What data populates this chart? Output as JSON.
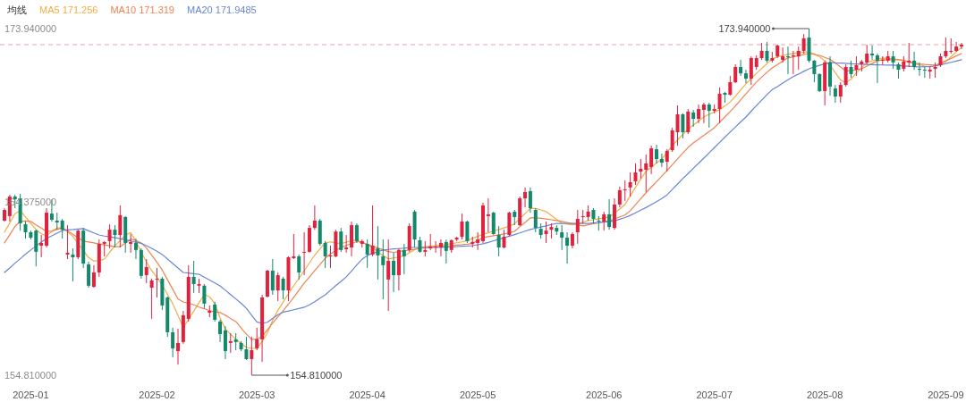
{
  "chart_data": {
    "type": "candlestick",
    "legend_title": "均线",
    "legend": "top left",
    "ylim": [
      154.81,
      173.94
    ],
    "categories": [
      null,
      null,
      null,
      null,
      null,
      "2025-01",
      null,
      null,
      null,
      null,
      null,
      null,
      null,
      null,
      null,
      null,
      null,
      null,
      null,
      null,
      null,
      null,
      null,
      null,
      null,
      null,
      null,
      null,
      null,
      "2025-02",
      null,
      null,
      null,
      null,
      null,
      null,
      null,
      null,
      null,
      null,
      null,
      null,
      null,
      null,
      null,
      null,
      null,
      null,
      "2025-03",
      null,
      null,
      null,
      null,
      null,
      null,
      null,
      null,
      null,
      null,
      null,
      null,
      null,
      null,
      null,
      null,
      null,
      null,
      null,
      null,
      "2025-04",
      null,
      null,
      null,
      null,
      null,
      null,
      null,
      null,
      null,
      null,
      null,
      null,
      null,
      null,
      null,
      null,
      null,
      null,
      null,
      null,
      "2025-05",
      null,
      null,
      null,
      null,
      null,
      null,
      null,
      null,
      null,
      null,
      null,
      null,
      null,
      null,
      null,
      null,
      null,
      null,
      null,
      null,
      null,
      null,
      null,
      "2025-06",
      null,
      null,
      null,
      null,
      null,
      null,
      null,
      null,
      null,
      null,
      null,
      null,
      null,
      null,
      null,
      null,
      null,
      null,
      null,
      null,
      "2025-07",
      null,
      null,
      null,
      null,
      null,
      null,
      null,
      null,
      null,
      null,
      null,
      null,
      null,
      null,
      null,
      null,
      null,
      null,
      null,
      null,
      "2025-08",
      null,
      null,
      null,
      null,
      null,
      null,
      null,
      null,
      null,
      null,
      null,
      null,
      null,
      null,
      null,
      null,
      null,
      null,
      null,
      null,
      null,
      null,
      "2025-09",
      null,
      null,
      null
    ],
    "yticks": [
      {
        "value": 173.94,
        "label": "173.940000"
      },
      {
        "value": 164.375,
        "label": "164.375000"
      },
      {
        "value": 154.81,
        "label": "154.810000"
      }
    ],
    "ohlc": [
      [
        163.34,
        164.03,
        163.29,
        163.93
      ],
      [
        163.59,
        164.77,
        163.29,
        164.67
      ],
      [
        164.67,
        164.77,
        164.03,
        164.52
      ],
      [
        164.57,
        164.82,
        162.79,
        163.19
      ],
      [
        163.14,
        163.29,
        162.35,
        162.7
      ],
      [
        162.7,
        162.79,
        162.3,
        162.4
      ],
      [
        162.79,
        162.84,
        160.82,
        161.62
      ],
      [
        161.96,
        162.55,
        161.32,
        162.11
      ],
      [
        161.96,
        164.03,
        161.86,
        163.78
      ],
      [
        163.73,
        164.52,
        163.29,
        163.39
      ],
      [
        163.34,
        163.78,
        162.84,
        163.24
      ],
      [
        163.34,
        163.44,
        162.35,
        162.84
      ],
      [
        161.47,
        163.09,
        161.22,
        161.57
      ],
      [
        161.47,
        161.81,
        159.99,
        161.32
      ],
      [
        161.32,
        162.84,
        161.22,
        162.79
      ],
      [
        162.79,
        162.94,
        160.73,
        160.97
      ],
      [
        160.92,
        161.07,
        159.64,
        159.75
      ],
      [
        159.69,
        160.88,
        159.64,
        160.48
      ],
      [
        160.48,
        162.3,
        160.24,
        162.06
      ],
      [
        162.06,
        162.21,
        161.37,
        162.16
      ],
      [
        162.21,
        163.14,
        161.81,
        162.84
      ],
      [
        162.84,
        163.09,
        161.86,
        162.55
      ],
      [
        162.55,
        164.18,
        161.86,
        163.64
      ],
      [
        163.54,
        163.59,
        161.57,
        162.11
      ],
      [
        162.06,
        162.6,
        161.57,
        162.16
      ],
      [
        162.11,
        162.35,
        161.22,
        161.72
      ],
      [
        161.72,
        161.81,
        160.14,
        160.29
      ],
      [
        160.33,
        161.22,
        159.89,
        160.78
      ],
      [
        159.64,
        160.14,
        157.92,
        160.04
      ],
      [
        160.09,
        160.73,
        159.1,
        160.14
      ],
      [
        160.14,
        160.24,
        158.41,
        158.66
      ],
      [
        159.1,
        159.15,
        156.93,
        157.18
      ],
      [
        157.18,
        157.43,
        155.8,
        156.29
      ],
      [
        156.14,
        157.37,
        155.4,
        156.59
      ],
      [
        156.64,
        158.36,
        156.54,
        158.12
      ],
      [
        157.92,
        160.88,
        157.77,
        160.24
      ],
      [
        160.24,
        161.12,
        159.35,
        159.84
      ],
      [
        159.75,
        160.14,
        159.35,
        159.84
      ],
      [
        159.75,
        159.84,
        158.51,
        158.76
      ],
      [
        158.26,
        158.66,
        158.01,
        158.36
      ],
      [
        158.71,
        158.86,
        157.77,
        157.87
      ],
      [
        157.77,
        157.87,
        156.64,
        157.08
      ],
      [
        157.28,
        157.52,
        155.7,
        156.14
      ],
      [
        156.59,
        157.13,
        156.04,
        156.69
      ],
      [
        156.79,
        157.13,
        156.19,
        156.64
      ],
      [
        156.59,
        156.69,
        156.14,
        156.24
      ],
      [
        156.24,
        156.93,
        155.65,
        155.7
      ],
      [
        155.7,
        156.93,
        154.81,
        156.19
      ],
      [
        156.29,
        157.43,
        156.19,
        156.79
      ],
      [
        156.79,
        159.25,
        155.55,
        159.1
      ],
      [
        159.15,
        160.63,
        159.1,
        160.58
      ],
      [
        160.58,
        161.22,
        159.25,
        159.49
      ],
      [
        159.49,
        160.48,
        158.9,
        160.33
      ],
      [
        160.14,
        160.24,
        159.0,
        159.49
      ],
      [
        159.49,
        161.37,
        158.9,
        161.32
      ],
      [
        161.27,
        162.6,
        161.22,
        161.37
      ],
      [
        161.37,
        161.47,
        160.09,
        160.48
      ],
      [
        161.57,
        162.7,
        160.33,
        161.62
      ],
      [
        161.62,
        163.09,
        161.57,
        162.94
      ],
      [
        162.94,
        164.18,
        162.84,
        163.34
      ],
      [
        163.34,
        163.44,
        161.96,
        162.06
      ],
      [
        162.11,
        162.21,
        160.73,
        161.37
      ],
      [
        161.37,
        161.96,
        160.73,
        161.42
      ],
      [
        161.37,
        162.84,
        161.32,
        162.74
      ],
      [
        162.74,
        162.94,
        161.62,
        161.72
      ],
      [
        161.76,
        162.55,
        161.57,
        161.86
      ],
      [
        161.86,
        163.29,
        161.37,
        163.09
      ],
      [
        163.09,
        163.19,
        162.11,
        162.21
      ],
      [
        162.06,
        162.3,
        161.86,
        162.21
      ],
      [
        162.06,
        162.3,
        160.73,
        161.47
      ],
      [
        161.47,
        164.18,
        161.37,
        161.96
      ],
      [
        161.81,
        163.04,
        160.09,
        161.42
      ],
      [
        161.37,
        162.3,
        159.0,
        160.88
      ],
      [
        160.09,
        162.3,
        158.36,
        161.12
      ],
      [
        161.12,
        161.57,
        159.4,
        160.33
      ],
      [
        160.33,
        161.81,
        159.49,
        161.72
      ],
      [
        161.72,
        162.06,
        160.38,
        161.37
      ],
      [
        161.72,
        163.19,
        161.62,
        163.04
      ],
      [
        163.84,
        163.93,
        161.86,
        162.3
      ],
      [
        162.26,
        162.45,
        161.57,
        161.62
      ],
      [
        161.62,
        162.21,
        161.37,
        161.72
      ],
      [
        161.81,
        162.6,
        161.72,
        161.91
      ],
      [
        161.86,
        162.21,
        161.57,
        161.91
      ],
      [
        161.86,
        162.3,
        161.37,
        162.11
      ],
      [
        162.16,
        162.3,
        160.97,
        161.67
      ],
      [
        161.72,
        162.3,
        161.57,
        162.26
      ],
      [
        162.3,
        162.45,
        162.21,
        162.4
      ],
      [
        162.45,
        163.73,
        162.3,
        163.29
      ],
      [
        163.29,
        163.34,
        162.11,
        162.21
      ],
      [
        162.06,
        162.45,
        161.86,
        162.16
      ],
      [
        162.11,
        162.7,
        161.72,
        162.3
      ],
      [
        162.21,
        164.33,
        162.11,
        164.18
      ],
      [
        163.59,
        164.57,
        162.7,
        163.69
      ],
      [
        163.78,
        163.83,
        162.55,
        162.6
      ],
      [
        162.55,
        163.04,
        161.37,
        161.86
      ],
      [
        161.86,
        162.84,
        161.81,
        162.45
      ],
      [
        162.55,
        163.83,
        162.45,
        163.78
      ],
      [
        163.83,
        163.93,
        163.09,
        163.54
      ],
      [
        163.09,
        164.67,
        163.04,
        164.57
      ],
      [
        164.57,
        165.17,
        164.08,
        164.92
      ],
      [
        164.97,
        165.17,
        163.78,
        164.03
      ],
      [
        163.93,
        164.03,
        162.7,
        162.94
      ],
      [
        162.89,
        163.19,
        162.35,
        162.55
      ],
      [
        162.6,
        163.29,
        162.11,
        162.79
      ],
      [
        162.84,
        163.19,
        162.35,
        162.99
      ],
      [
        162.94,
        163.09,
        162.55,
        162.74
      ],
      [
        162.7,
        163.09,
        161.72,
        162.4
      ],
      [
        162.4,
        162.7,
        160.97,
        161.96
      ],
      [
        161.96,
        162.7,
        161.81,
        162.6
      ],
      [
        162.7,
        163.93,
        162.06,
        163.44
      ],
      [
        163.54,
        163.93,
        163.19,
        163.59
      ],
      [
        163.54,
        164.18,
        163.34,
        163.84
      ],
      [
        163.93,
        164.03,
        163.19,
        163.44
      ],
      [
        163.34,
        163.59,
        162.79,
        163.29
      ],
      [
        163.29,
        163.83,
        162.79,
        163.69
      ],
      [
        163.69,
        164.52,
        162.84,
        162.99
      ],
      [
        162.94,
        164.57,
        162.84,
        164.23
      ],
      [
        164.23,
        165.22,
        164.08,
        165.02
      ],
      [
        165.02,
        165.56,
        164.43,
        165.07
      ],
      [
        165.17,
        166.0,
        164.67,
        165.46
      ],
      [
        165.51,
        166.5,
        165.31,
        166.0
      ],
      [
        166.05,
        166.74,
        165.66,
        166.2
      ],
      [
        166.15,
        166.99,
        164.92,
        166.5
      ],
      [
        166.3,
        167.48,
        165.91,
        167.33
      ],
      [
        167.28,
        167.53,
        166.5,
        166.74
      ],
      [
        166.74,
        167.04,
        166.3,
        166.54
      ],
      [
        166.59,
        167.28,
        166.05,
        167.19
      ],
      [
        167.23,
        168.47,
        167.14,
        168.32
      ],
      [
        168.22,
        169.7,
        167.48,
        169.21
      ],
      [
        169.21,
        169.26,
        167.88,
        168.22
      ],
      [
        168.22,
        169.5,
        168.12,
        169.36
      ],
      [
        169.31,
        169.45,
        168.52,
        168.96
      ],
      [
        168.96,
        169.75,
        168.72,
        169.5
      ],
      [
        169.45,
        169.85,
        168.72,
        169.75
      ],
      [
        169.75,
        169.85,
        168.47,
        169.4
      ],
      [
        169.4,
        169.75,
        169.26,
        169.5
      ],
      [
        169.5,
        170.69,
        168.72,
        170.34
      ],
      [
        170.39,
        170.44,
        169.85,
        170.29
      ],
      [
        170.29,
        171.33,
        170.24,
        170.98
      ],
      [
        170.98,
        171.97,
        170.93,
        171.82
      ],
      [
        171.82,
        172.22,
        171.33,
        171.47
      ],
      [
        171.47,
        171.67,
        170.93,
        171.18
      ],
      [
        171.18,
        172.41,
        170.83,
        172.31
      ],
      [
        171.82,
        172.46,
        171.67,
        172.31
      ],
      [
        172.31,
        173.15,
        172.21,
        172.71
      ],
      [
        172.71,
        173.2,
        172.07,
        172.17
      ],
      [
        172.17,
        172.66,
        172.07,
        172.31
      ],
      [
        172.41,
        173.05,
        172.31,
        173.0
      ],
      [
        172.21,
        172.9,
        172.07,
        172.41
      ],
      [
        172.41,
        172.95,
        171.43,
        172.36
      ],
      [
        172.41,
        172.71,
        171.43,
        172.46
      ],
      [
        172.41,
        172.95,
        171.67,
        172.71
      ],
      [
        172.71,
        173.64,
        172.56,
        173.4
      ],
      [
        173.45,
        173.94,
        172.07,
        172.17
      ],
      [
        172.17,
        172.21,
        170.98,
        171.43
      ],
      [
        171.43,
        171.47,
        170.44,
        170.49
      ],
      [
        170.49,
        172.17,
        169.7,
        172.07
      ],
      [
        172.07,
        172.41,
        170.24,
        170.74
      ],
      [
        170.64,
        170.83,
        169.85,
        170.19
      ],
      [
        170.19,
        170.98,
        169.85,
        170.83
      ],
      [
        170.83,
        171.97,
        170.74,
        171.82
      ],
      [
        171.82,
        172.17,
        171.23,
        171.43
      ],
      [
        171.67,
        172.41,
        171.33,
        171.92
      ],
      [
        171.97,
        172.22,
        171.57,
        172.12
      ],
      [
        172.07,
        173.05,
        171.97,
        172.56
      ],
      [
        172.56,
        173.0,
        172.22,
        172.46
      ],
      [
        172.46,
        172.56,
        170.93,
        172.17
      ],
      [
        172.17,
        172.41,
        171.92,
        172.22
      ],
      [
        172.17,
        172.71,
        172.07,
        172.41
      ],
      [
        172.41,
        172.71,
        171.72,
        172.07
      ],
      [
        171.97,
        172.07,
        171.18,
        171.67
      ],
      [
        171.72,
        172.41,
        171.57,
        172.12
      ],
      [
        172.07,
        173.15,
        171.82,
        172.17
      ],
      [
        172.17,
        172.66,
        171.67,
        171.82
      ],
      [
        171.72,
        172.07,
        171.33,
        171.67
      ],
      [
        171.67,
        171.82,
        171.23,
        171.62
      ],
      [
        171.57,
        171.82,
        171.18,
        171.67
      ],
      [
        171.72,
        172.07,
        171.23,
        171.82
      ],
      [
        171.92,
        172.56,
        171.82,
        172.41
      ],
      [
        172.41,
        173.45,
        172.31,
        172.71
      ],
      [
        172.66,
        173.4,
        172.56,
        172.71
      ],
      [
        172.71,
        173.2,
        172.66,
        172.95
      ],
      [
        172.95,
        173.15,
        172.81,
        173.05
      ]
    ],
    "colors": [
      "#e0223f",
      "#e0223f",
      "#12896b",
      "#12896b",
      "#12896b",
      "#12896b",
      "#12896b",
      "#e0223f",
      "#e0223f",
      "#12896b",
      "#12896b",
      "#12896b",
      "#e0223f",
      "#12896b",
      "#e0223f",
      "#12896b",
      "#12896b",
      "#e0223f",
      "#e0223f",
      "#e0223f",
      "#e0223f",
      "#12896b",
      "#e0223f",
      "#12896b",
      "#e0223f",
      "#12896b",
      "#12896b",
      "#e0223f",
      "#e0223f",
      "#e0223f",
      "#12896b",
      "#12896b",
      "#12896b",
      "#e0223f",
      "#e0223f",
      "#e0223f",
      "#12896b",
      "#e0223f",
      "#12896b",
      "#e0223f",
      "#12896b",
      "#12896b",
      "#12896b",
      "#e0223f",
      "#12896b",
      "#12896b",
      "#12896b",
      "#e0223f",
      "#e0223f",
      "#e0223f",
      "#e0223f",
      "#12896b",
      "#e0223f",
      "#12896b",
      "#e0223f",
      "#e0223f",
      "#12896b",
      "#e0223f",
      "#e0223f",
      "#e0223f",
      "#12896b",
      "#12896b",
      "#e0223f",
      "#e0223f",
      "#12896b",
      "#e0223f",
      "#e0223f",
      "#12896b",
      "#e0223f",
      "#12896b",
      "#e0223f",
      "#12896b",
      "#12896b",
      "#e0223f",
      "#12896b",
      "#e0223f",
      "#12896b",
      "#e0223f",
      "#12896b",
      "#12896b",
      "#e0223f",
      "#e0223f",
      "#e0223f",
      "#e0223f",
      "#12896b",
      "#e0223f",
      "#e0223f",
      "#e0223f",
      "#12896b",
      "#e0223f",
      "#e0223f",
      "#e0223f",
      "#e0223f",
      "#12896b",
      "#12896b",
      "#e0223f",
      "#e0223f",
      "#12896b",
      "#e0223f",
      "#e0223f",
      "#12896b",
      "#12896b",
      "#12896b",
      "#e0223f",
      "#e0223f",
      "#12896b",
      "#12896b",
      "#12896b",
      "#e0223f",
      "#e0223f",
      "#e0223f",
      "#e0223f",
      "#12896b",
      "#12896b",
      "#e0223f",
      "#12896b",
      "#e0223f",
      "#e0223f",
      "#e0223f",
      "#e0223f",
      "#e0223f",
      "#e0223f",
      "#e0223f",
      "#e0223f",
      "#12896b",
      "#12896b",
      "#e0223f",
      "#e0223f",
      "#e0223f",
      "#12896b",
      "#e0223f",
      "#12896b",
      "#e0223f",
      "#e0223f",
      "#12896b",
      "#e0223f",
      "#e0223f",
      "#12896b",
      "#e0223f",
      "#e0223f",
      "#12896b",
      "#12896b",
      "#e0223f",
      "#e0223f",
      "#e0223f",
      "#12896b",
      "#e0223f",
      "#e0223f",
      "#e0223f",
      "#12896b",
      "#e0223f",
      "#e0223f",
      "#e0223f",
      "#12896b",
      "#12896b",
      "#12896b",
      "#e0223f",
      "#12896b",
      "#12896b",
      "#e0223f",
      "#e0223f",
      "#12896b",
      "#e0223f",
      "#e0223f",
      "#e0223f",
      "#12896b",
      "#12896b",
      "#e0223f",
      "#e0223f",
      "#12896b",
      "#12896b",
      "#e0223f",
      "#e0223f",
      "#12896b",
      "#12896b",
      "#12896b",
      "#e0223f",
      "#e0223f",
      "#e0223f",
      "#e0223f",
      "#e0223f",
      "#e0223f",
      "#e0223f"
    ],
    "series": [
      {
        "name": "MA5 171.256",
        "type": "line",
        "color": "#f2ad45",
        "values": [
          162.7,
          163.21,
          163.72,
          163.89,
          163.54,
          163.2,
          162.85,
          162.61,
          162.51,
          162.73,
          162.94,
          162.94,
          162.72,
          162.47,
          162.08,
          161.69,
          161.3,
          161.11,
          161.13,
          161.22,
          161.6,
          161.95,
          162.25,
          162.55,
          162.68,
          162.21,
          161.61,
          161.06,
          160.58,
          160.2,
          159.79,
          159.27,
          158.76,
          158.1,
          157.43,
          157.89,
          158.35,
          158.81,
          159.26,
          159.14,
          158.76,
          157.98,
          157.35,
          157.07,
          156.8,
          156.56,
          156.35,
          156.29,
          156.29,
          156.67,
          157.14,
          157.84,
          158.39,
          158.85,
          159.31,
          159.74,
          160.16,
          160.58,
          161.01,
          161.44,
          161.79,
          162.11,
          162.17,
          162.11,
          162.07,
          162.15,
          162.24,
          162.28,
          162.15,
          162.02,
          161.85,
          161.63,
          161.42,
          161.23,
          161.28,
          161.33,
          161.4,
          161.57,
          161.74,
          161.87,
          161.9,
          161.93,
          161.96,
          161.99,
          162.03,
          162.07,
          162.12,
          162.17,
          162.24,
          162.36,
          162.47,
          162.59,
          162.67,
          162.76,
          162.85,
          162.94,
          163.03,
          163.16,
          163.45,
          163.73,
          164.02,
          164.01,
          163.93,
          163.84,
          163.62,
          163.41,
          163.19,
          163.15,
          163.11,
          163.17,
          163.25,
          163.34,
          163.39,
          163.44,
          163.49,
          163.54,
          163.76,
          163.98,
          164.23,
          164.7,
          165.17,
          165.64,
          166.06,
          166.29,
          166.52,
          166.74,
          167.1,
          167.48,
          167.8,
          168.09,
          168.38,
          168.62,
          168.84,
          169.07,
          169.21,
          169.34,
          169.46,
          169.67,
          169.89,
          170.2,
          170.56,
          170.89,
          171.18,
          171.47,
          171.74,
          172.0,
          172.27,
          172.38,
          172.45,
          172.52,
          172.57,
          172.6,
          172.63,
          172.66,
          172.54,
          172.39,
          172.16,
          171.92,
          171.51,
          171.1,
          170.96,
          171.15,
          171.49,
          171.78,
          172.07,
          172.16,
          172.24,
          172.32,
          172.29,
          172.26,
          172.23,
          172.17,
          172.08,
          172.0,
          171.93,
          171.87,
          171.82,
          171.91,
          172.0,
          172.12,
          172.39,
          172.65,
          172.91
        ]
      },
      {
        "name": "MA10 171.319",
        "type": "line",
        "color": "#ee8350",
        "values": [
          162.11,
          162.56,
          163.02,
          163.3,
          163.32,
          163.3,
          163.11,
          162.93,
          162.74,
          162.77,
          162.85,
          162.94,
          162.78,
          162.59,
          162.4,
          162.21,
          162.16,
          162.11,
          162.05,
          162.0,
          161.95,
          161.9,
          161.9,
          162.11,
          162.32,
          162.25,
          162.11,
          161.83,
          161.44,
          161.04,
          160.62,
          160.08,
          159.55,
          159.01,
          158.85,
          158.79,
          158.69,
          158.57,
          158.48,
          158.37,
          158.32,
          158.27,
          158.12,
          157.94,
          157.77,
          157.42,
          157.07,
          156.79,
          156.79,
          156.94,
          157.32,
          157.69,
          158.03,
          158.37,
          158.73,
          159.11,
          159.5,
          159.89,
          160.23,
          160.58,
          160.92,
          161.27,
          161.5,
          161.69,
          161.87,
          161.97,
          162.08,
          162.18,
          162.14,
          162.03,
          161.93,
          161.83,
          161.73,
          161.63,
          161.59,
          161.63,
          161.68,
          161.72,
          161.76,
          161.8,
          161.84,
          161.87,
          161.9,
          161.92,
          161.94,
          161.96,
          161.99,
          162.01,
          162.04,
          162.08,
          162.24,
          162.41,
          162.46,
          162.51,
          162.56,
          162.61,
          162.66,
          162.75,
          163.0,
          163.24,
          163.49,
          163.51,
          163.47,
          163.43,
          163.39,
          163.35,
          163.3,
          163.24,
          163.18,
          163.11,
          163.05,
          163.11,
          163.17,
          163.22,
          163.28,
          163.34,
          163.44,
          163.55,
          163.65,
          163.89,
          164.22,
          164.55,
          164.88,
          165.19,
          165.49,
          165.8,
          166.11,
          166.43,
          166.75,
          167.07,
          167.38,
          167.63,
          167.84,
          168.05,
          168.26,
          168.47,
          168.77,
          169.07,
          169.36,
          169.67,
          170.0,
          170.34,
          170.67,
          170.99,
          171.26,
          171.53,
          171.77,
          171.96,
          172.14,
          172.32,
          172.38,
          172.44,
          172.5,
          172.56,
          172.51,
          172.46,
          172.35,
          172.24,
          172.04,
          171.82,
          171.6,
          171.62,
          171.67,
          171.72,
          171.87,
          172.01,
          172.16,
          172.22,
          172.22,
          172.22,
          172.22,
          172.18,
          172.11,
          172.05,
          171.99,
          171.96,
          171.94,
          171.92,
          172.03,
          172.16,
          172.29,
          172.43,
          172.56
        ]
      },
      {
        "name": "MA20 171.9485",
        "type": "line",
        "color": "#6a85d8",
        "values": [
          160.48,
          160.73,
          160.99,
          161.24,
          161.49,
          161.72,
          161.94,
          162.16,
          162.35,
          162.5,
          162.65,
          162.8,
          162.83,
          162.85,
          162.88,
          162.9,
          162.78,
          162.66,
          162.55,
          162.49,
          162.45,
          162.4,
          162.35,
          162.28,
          162.22,
          162.15,
          162.09,
          161.96,
          161.81,
          161.65,
          161.47,
          161.22,
          160.97,
          160.73,
          160.48,
          160.45,
          160.41,
          160.38,
          160.22,
          160.06,
          159.9,
          159.74,
          159.5,
          159.26,
          159.02,
          158.78,
          158.5,
          158.12,
          157.75,
          157.67,
          157.73,
          157.94,
          158.15,
          158.29,
          158.35,
          158.42,
          158.49,
          158.56,
          158.69,
          158.87,
          159.06,
          159.25,
          159.5,
          159.75,
          159.99,
          160.24,
          160.56,
          160.89,
          161.21,
          161.42,
          161.53,
          161.63,
          161.72,
          161.75,
          161.78,
          161.8,
          161.82,
          161.85,
          161.86,
          161.86,
          161.86,
          161.86,
          161.86,
          161.86,
          161.88,
          161.89,
          161.91,
          161.93,
          161.94,
          161.96,
          162.01,
          162.06,
          162.14,
          162.23,
          162.31,
          162.4,
          162.48,
          162.57,
          162.66,
          162.76,
          162.85,
          162.92,
          162.99,
          163.05,
          163.12,
          163.19,
          163.19,
          163.19,
          163.19,
          163.19,
          163.19,
          163.19,
          163.21,
          163.23,
          163.26,
          163.28,
          163.33,
          163.42,
          163.51,
          163.63,
          163.77,
          163.92,
          164.06,
          164.23,
          164.39,
          164.56,
          164.76,
          165.06,
          165.36,
          165.66,
          165.94,
          166.23,
          166.51,
          166.79,
          167.08,
          167.37,
          167.66,
          167.95,
          168.23,
          168.51,
          168.79,
          169.06,
          169.38,
          169.69,
          169.99,
          170.3,
          170.57,
          170.74,
          170.93,
          171.12,
          171.29,
          171.43,
          171.58,
          171.72,
          171.83,
          171.91,
          171.99,
          172.07,
          172.05,
          172.04,
          172.02,
          172.0,
          171.99,
          171.97,
          171.96,
          171.95,
          171.94,
          171.93,
          171.92,
          171.92,
          171.9,
          171.88,
          171.86,
          171.84,
          171.82,
          171.84,
          171.85,
          171.87,
          171.94,
          172.01,
          172.08,
          172.15,
          172.22
        ]
      }
    ],
    "ref_lines": [
      {
        "axis": "y",
        "value": 173.05,
        "color": "#f2a0a6",
        "line_style": "dashed"
      }
    ],
    "annotations": [
      "173.940000",
      "154.810000"
    ]
  }
}
